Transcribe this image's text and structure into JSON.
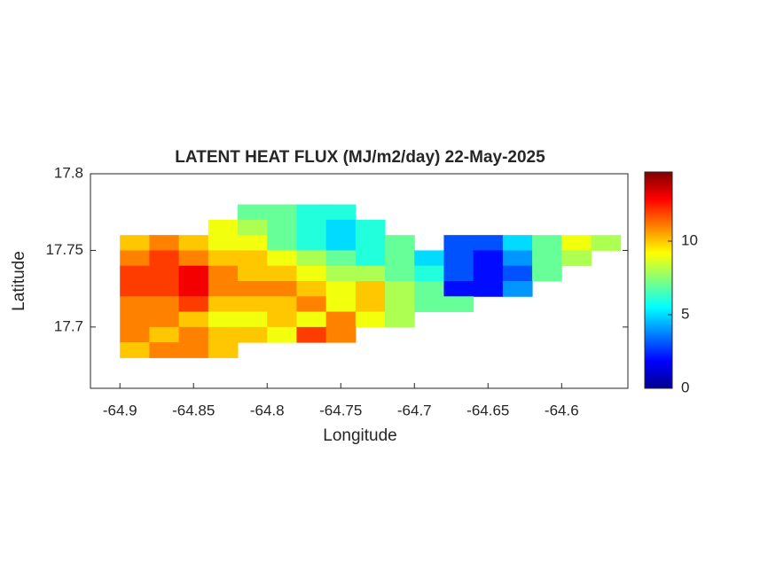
{
  "chart_data": {
    "type": "heatmap",
    "title": "LATENT HEAT FLUX (MJ/m2/day) 22-May-2025",
    "x_label": "Longitude",
    "y_label": "Latitude",
    "xlim": [
      -64.92,
      -64.555
    ],
    "ylim": [
      17.66,
      17.8
    ],
    "xticks": [
      -64.9,
      -64.85,
      -64.8,
      -64.75,
      -64.7,
      -64.65,
      -64.6
    ],
    "yticks": [
      17.7,
      17.75,
      17.8
    ],
    "colormap": "jet",
    "clim": [
      0,
      14.7
    ],
    "cticks": [
      0,
      5,
      10
    ],
    "x": [
      -64.89,
      -64.87,
      -64.85,
      -64.83,
      -64.81,
      -64.79,
      -64.77,
      -64.75,
      -64.73,
      -64.71,
      -64.69,
      -64.67,
      -64.65,
      -64.63,
      -64.61,
      -64.59,
      -64.57
    ],
    "y": [
      17.775,
      17.765,
      17.755,
      17.745,
      17.735,
      17.725,
      17.715,
      17.705,
      17.695,
      17.685
    ],
    "z": [
      [
        null,
        null,
        null,
        null,
        7,
        7,
        6,
        6,
        null,
        null,
        null,
        null,
        null,
        null,
        null,
        null,
        null
      ],
      [
        null,
        null,
        null,
        9,
        8,
        7,
        6,
        5,
        6,
        null,
        null,
        null,
        null,
        null,
        null,
        null,
        null
      ],
      [
        10,
        11,
        10,
        9,
        9,
        7,
        6,
        5,
        6,
        7,
        null,
        3,
        3,
        5,
        7,
        9,
        8
      ],
      [
        11,
        12,
        11,
        10,
        10,
        9,
        8,
        7,
        6,
        7,
        5,
        3,
        2,
        4,
        7,
        8,
        null
      ],
      [
        12,
        12,
        13,
        11,
        10,
        10,
        9,
        8,
        8,
        7,
        6,
        3,
        2,
        3,
        7,
        null,
        null
      ],
      [
        12,
        12,
        13,
        11,
        11,
        11,
        10,
        9,
        10,
        8,
        7,
        2,
        2,
        4,
        null,
        null,
        null
      ],
      [
        11,
        11,
        12,
        10,
        10,
        10,
        11,
        9,
        10,
        8,
        7,
        7,
        null,
        null,
        null,
        null,
        null
      ],
      [
        11,
        11,
        10,
        9,
        9,
        10,
        9,
        11,
        9,
        8,
        null,
        null,
        null,
        null,
        null,
        null,
        null
      ],
      [
        11,
        10,
        11,
        10,
        10,
        9,
        12,
        11,
        null,
        null,
        null,
        null,
        null,
        null,
        null,
        null,
        null
      ],
      [
        10,
        11,
        11,
        10,
        null,
        null,
        null,
        null,
        null,
        null,
        null,
        null,
        null,
        null,
        null,
        null,
        null
      ]
    ]
  }
}
